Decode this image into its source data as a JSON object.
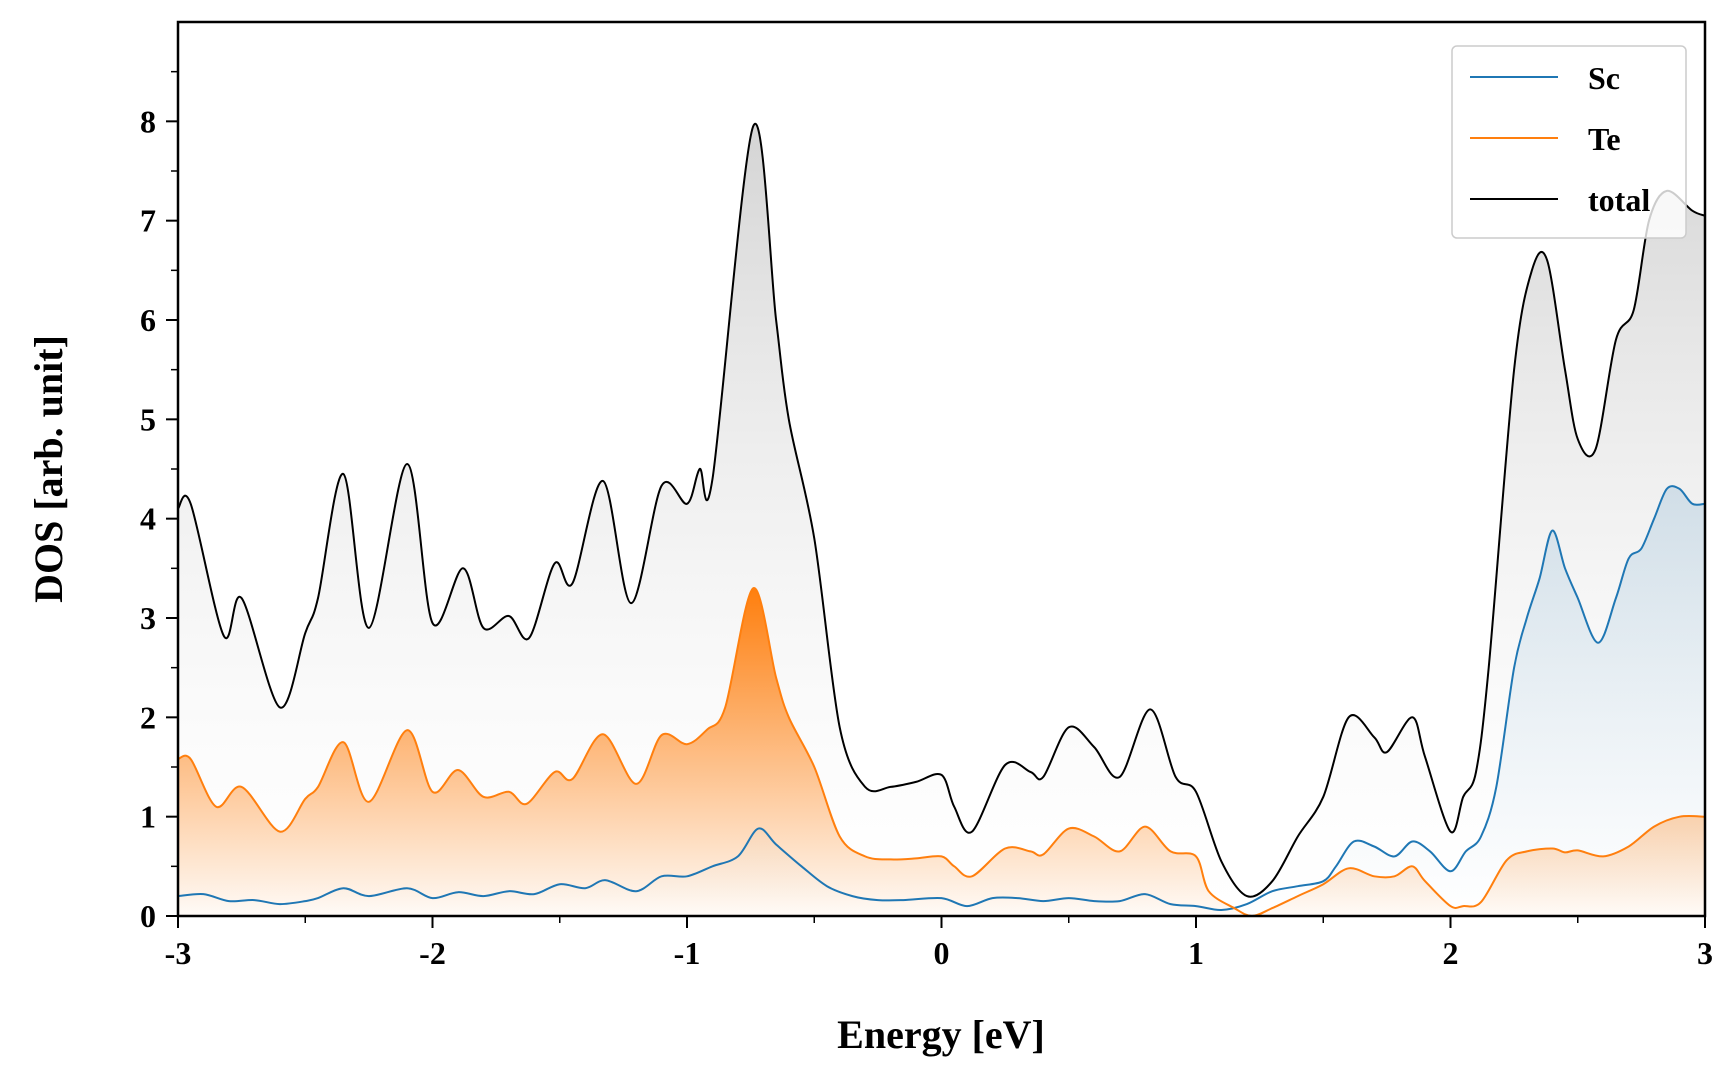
{
  "chart_data": {
    "type": "line",
    "xlabel": "Energy [eV]",
    "ylabel": "DOS [arb. unit]",
    "xlim": [
      -3,
      3
    ],
    "ylim": [
      0,
      9
    ],
    "xticks": [
      -3,
      -2,
      -1,
      0,
      1,
      2,
      3
    ],
    "xtick_labels": [
      "-3",
      "-2",
      "-1",
      "0",
      "1",
      "2",
      "3"
    ],
    "yticks": [
      0,
      1,
      2,
      3,
      4,
      5,
      6,
      7,
      8
    ],
    "ytick_labels": [
      "0",
      "1",
      "2",
      "3",
      "4",
      "5",
      "6",
      "7",
      "8"
    ],
    "grid": false,
    "legend_position": "top-right",
    "colors": {
      "Sc": "#1f77b4",
      "Te": "#ff7f0e",
      "total": "#000000"
    },
    "series": [
      {
        "name": "Sc",
        "x": [
          -3.0,
          -2.9,
          -2.8,
          -2.7,
          -2.6,
          -2.5,
          -2.45,
          -2.35,
          -2.25,
          -2.1,
          -2.0,
          -1.9,
          -1.8,
          -1.7,
          -1.6,
          -1.5,
          -1.4,
          -1.32,
          -1.2,
          -1.1,
          -1.0,
          -0.9,
          -0.8,
          -0.72,
          -0.65,
          -0.55,
          -0.45,
          -0.35,
          -0.25,
          -0.15,
          0.0,
          0.1,
          0.2,
          0.3,
          0.4,
          0.5,
          0.6,
          0.7,
          0.8,
          0.9,
          1.0,
          1.1,
          1.2,
          1.3,
          1.4,
          1.5,
          1.55,
          1.62,
          1.7,
          1.78,
          1.85,
          1.92,
          2.0,
          2.06,
          2.12,
          2.18,
          2.25,
          2.3,
          2.35,
          2.4,
          2.45,
          2.5,
          2.58,
          2.65,
          2.7,
          2.75,
          2.8,
          2.85,
          2.9,
          2.95,
          3.0
        ],
        "values": [
          0.2,
          0.22,
          0.15,
          0.16,
          0.12,
          0.15,
          0.18,
          0.28,
          0.2,
          0.28,
          0.18,
          0.24,
          0.2,
          0.25,
          0.22,
          0.32,
          0.28,
          0.36,
          0.25,
          0.4,
          0.4,
          0.5,
          0.6,
          0.88,
          0.72,
          0.5,
          0.3,
          0.2,
          0.16,
          0.16,
          0.18,
          0.1,
          0.18,
          0.18,
          0.15,
          0.18,
          0.15,
          0.15,
          0.22,
          0.12,
          0.1,
          0.06,
          0.12,
          0.25,
          0.3,
          0.35,
          0.5,
          0.75,
          0.7,
          0.6,
          0.75,
          0.65,
          0.45,
          0.65,
          0.8,
          1.3,
          2.5,
          3.0,
          3.4,
          3.88,
          3.5,
          3.2,
          2.75,
          3.2,
          3.6,
          3.7,
          4.0,
          4.3,
          4.3,
          4.15,
          4.15
        ]
      },
      {
        "name": "Te",
        "x": [
          -3.0,
          -2.95,
          -2.85,
          -2.75,
          -2.6,
          -2.5,
          -2.45,
          -2.35,
          -2.25,
          -2.1,
          -2.0,
          -1.9,
          -1.8,
          -1.7,
          -1.63,
          -1.52,
          -1.45,
          -1.33,
          -1.2,
          -1.1,
          -1.0,
          -0.92,
          -0.85,
          -0.74,
          -0.65,
          -0.6,
          -0.5,
          -0.4,
          -0.3,
          -0.2,
          -0.1,
          0.0,
          0.05,
          0.12,
          0.25,
          0.35,
          0.4,
          0.5,
          0.6,
          0.7,
          0.8,
          0.9,
          1.0,
          1.05,
          1.15,
          1.22,
          1.3,
          1.4,
          1.5,
          1.6,
          1.7,
          1.78,
          1.85,
          1.9,
          2.0,
          2.05,
          2.12,
          2.22,
          2.3,
          2.4,
          2.45,
          2.5,
          2.6,
          2.7,
          2.8,
          2.9,
          3.0
        ],
        "values": [
          1.58,
          1.58,
          1.1,
          1.3,
          0.85,
          1.18,
          1.3,
          1.75,
          1.15,
          1.87,
          1.25,
          1.47,
          1.2,
          1.25,
          1.13,
          1.45,
          1.38,
          1.83,
          1.33,
          1.82,
          1.73,
          1.88,
          2.1,
          3.3,
          2.4,
          2.0,
          1.5,
          0.8,
          0.6,
          0.57,
          0.58,
          0.6,
          0.5,
          0.4,
          0.68,
          0.65,
          0.62,
          0.88,
          0.8,
          0.65,
          0.9,
          0.65,
          0.6,
          0.25,
          0.08,
          0.0,
          0.08,
          0.2,
          0.32,
          0.48,
          0.4,
          0.4,
          0.5,
          0.35,
          0.1,
          0.1,
          0.14,
          0.56,
          0.65,
          0.68,
          0.64,
          0.66,
          0.6,
          0.7,
          0.9,
          1.0,
          1.0
        ]
      },
      {
        "name": "total",
        "x": [
          -3.0,
          -2.95,
          -2.82,
          -2.75,
          -2.6,
          -2.5,
          -2.45,
          -2.35,
          -2.25,
          -2.1,
          -2.0,
          -1.88,
          -1.8,
          -1.7,
          -1.62,
          -1.52,
          -1.45,
          -1.33,
          -1.22,
          -1.1,
          -1.0,
          -0.95,
          -0.9,
          -0.74,
          -0.65,
          -0.6,
          -0.5,
          -0.4,
          -0.3,
          -0.2,
          -0.1,
          0.0,
          0.05,
          0.12,
          0.25,
          0.35,
          0.4,
          0.5,
          0.6,
          0.7,
          0.82,
          0.92,
          1.0,
          1.1,
          1.2,
          1.3,
          1.4,
          1.5,
          1.6,
          1.7,
          1.75,
          1.85,
          1.9,
          2.0,
          2.05,
          2.1,
          2.15,
          2.25,
          2.32,
          2.38,
          2.45,
          2.5,
          2.57,
          2.65,
          2.72,
          2.78,
          2.85,
          2.95,
          3.0
        ],
        "values": [
          4.1,
          4.15,
          2.82,
          3.2,
          2.1,
          2.85,
          3.2,
          4.45,
          2.9,
          4.55,
          2.95,
          3.5,
          2.9,
          3.02,
          2.8,
          3.55,
          3.35,
          4.38,
          3.15,
          4.33,
          4.15,
          4.5,
          4.4,
          7.95,
          6.0,
          5.0,
          3.8,
          1.9,
          1.3,
          1.3,
          1.35,
          1.42,
          1.1,
          0.85,
          1.52,
          1.45,
          1.4,
          1.9,
          1.7,
          1.4,
          2.08,
          1.4,
          1.25,
          0.55,
          0.2,
          0.35,
          0.8,
          1.2,
          2.0,
          1.8,
          1.65,
          2.0,
          1.6,
          0.85,
          1.2,
          1.45,
          2.5,
          5.5,
          6.5,
          6.6,
          5.5,
          4.8,
          4.7,
          5.8,
          6.1,
          7.0,
          7.3,
          7.1,
          7.05
        ]
      }
    ]
  }
}
